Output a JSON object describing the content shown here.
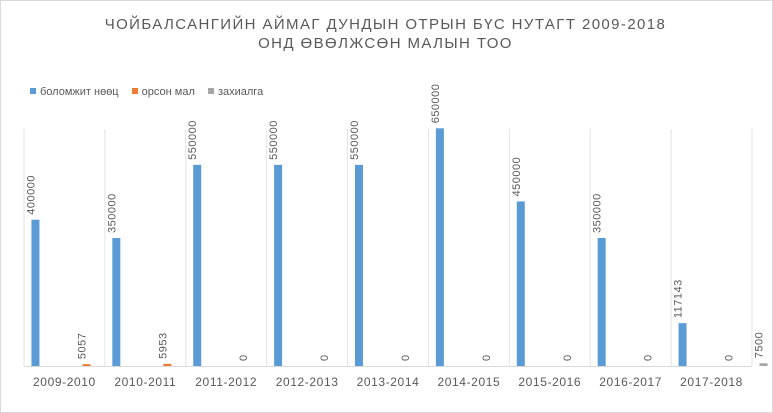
{
  "chart_data": {
    "type": "bar",
    "title_lines": [
      "ЧОЙБАЛСАНГИЙН АЙМАГ ДУНДЫН ОТРЫН БҮС НУТАГТ 2009-2018",
      "ОНД ӨВӨЛЖСӨН МАЛЫН ТОО"
    ],
    "categories": [
      "2009-2010",
      "2010-2011",
      "2011-2012",
      "2012-2013",
      "2013-2014",
      "2014-2015",
      "2015-2016",
      "2016-2017",
      "2017-2018"
    ],
    "series": [
      {
        "name": "боломжит  нөөц",
        "color": "#5b9bd5",
        "values": [
          400000,
          350000,
          550000,
          550000,
          550000,
          650000,
          450000,
          350000,
          117143
        ]
      },
      {
        "name": "орсон мал",
        "color": "#ed7d31",
        "values": [
          5057,
          5953,
          0,
          0,
          0,
          0,
          0,
          0,
          0
        ]
      },
      {
        "name": "захиалга",
        "color": "#a5a5a5",
        "values": [
          null,
          null,
          null,
          null,
          null,
          null,
          null,
          null,
          7500
        ]
      }
    ],
    "data_labels": [
      [
        "400000",
        "350000",
        "550000",
        "550000",
        "550000",
        "650000",
        "450000",
        "350000",
        "117143"
      ],
      [
        "5057",
        "5953",
        "0",
        "0",
        "0",
        "0",
        "0",
        "0",
        "0"
      ],
      [
        "",
        "",
        "",
        "",
        "",
        "",
        "",
        "",
        "7500"
      ]
    ],
    "ylim": [
      0,
      700000
    ],
    "legend_position": "top-left",
    "grid": "vertical category separators"
  }
}
